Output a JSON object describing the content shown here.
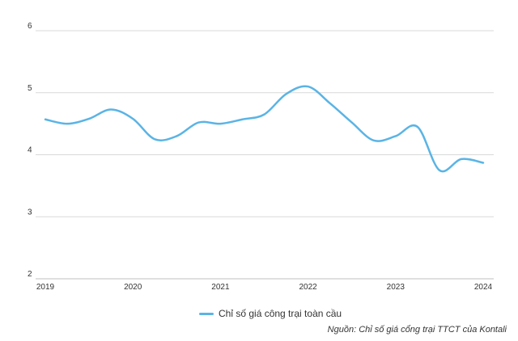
{
  "chart_data": {
    "type": "line",
    "x_ticks": [
      "2019",
      "2020",
      "2021",
      "2022",
      "2023",
      "2024"
    ],
    "y_ticks": [
      2,
      3,
      4,
      5,
      6
    ],
    "ylim": [
      2,
      6
    ],
    "xlim": [
      2019,
      2024
    ],
    "grid": true,
    "legend_position": "bottom",
    "series": [
      {
        "name": "Chỉ số giá công trại toàn cầu",
        "color": "#5ab4e5",
        "x": [
          2019.0,
          2019.25,
          2019.5,
          2019.75,
          2020.0,
          2020.25,
          2020.5,
          2020.75,
          2021.0,
          2021.25,
          2021.5,
          2021.75,
          2022.0,
          2022.25,
          2022.5,
          2022.75,
          2023.0,
          2023.25,
          2023.5,
          2023.75,
          2024.0
        ],
        "y": [
          4.57,
          4.5,
          4.58,
          4.73,
          4.58,
          4.25,
          4.3,
          4.52,
          4.5,
          4.57,
          4.65,
          4.98,
          5.1,
          4.83,
          4.52,
          4.23,
          4.3,
          4.45,
          3.75,
          3.93,
          3.87
        ]
      }
    ]
  },
  "legend": {
    "label": "Chỉ số giá công trại toàn cầu",
    "color": "#5ab4e5"
  },
  "source": "Nguồn: Chỉ số giá cổng trại TTCT của Kontali"
}
